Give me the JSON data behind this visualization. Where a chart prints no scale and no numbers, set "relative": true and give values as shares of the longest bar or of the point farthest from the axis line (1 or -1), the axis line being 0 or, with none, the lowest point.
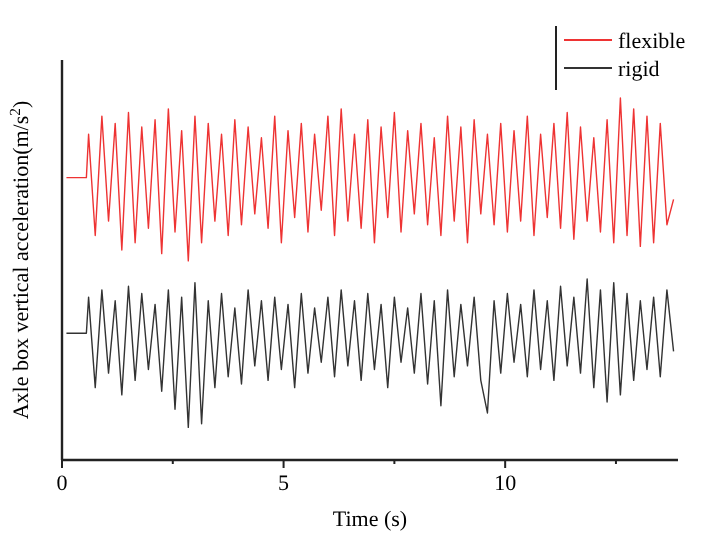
{
  "chart_data": {
    "type": "line",
    "relative": true,
    "xlabel": "Time (s)",
    "ylabel": "Axle box vertical acceleration(m/s$^{2}$)",
    "legend": "top right",
    "xlim": [
      0,
      13.9
    ],
    "xticks": [
      0,
      5,
      10,
      {
        "value": 2.5,
        "label": null
      },
      {
        "value": 7.5,
        "label": null
      },
      {
        "value": 12.5,
        "label": null
      }
    ],
    "x": [
      0.1,
      0.55,
      0.6,
      0.75,
      0.9,
      1.05,
      1.2,
      1.35,
      1.5,
      1.65,
      1.8,
      1.95,
      2.1,
      2.25,
      2.4,
      2.55,
      2.7,
      2.85,
      3.0,
      3.15,
      3.3,
      3.45,
      3.6,
      3.75,
      3.9,
      4.05,
      4.2,
      4.35,
      4.5,
      4.65,
      4.8,
      4.95,
      5.1,
      5.25,
      5.4,
      5.55,
      5.7,
      5.85,
      6.0,
      6.15,
      6.3,
      6.45,
      6.6,
      6.75,
      6.9,
      7.05,
      7.2,
      7.35,
      7.5,
      7.65,
      7.8,
      7.95,
      8.1,
      8.25,
      8.4,
      8.55,
      8.7,
      8.85,
      9.0,
      9.15,
      9.3,
      9.45,
      9.6,
      9.75,
      9.9,
      10.05,
      10.2,
      10.35,
      10.5,
      10.65,
      10.8,
      10.95,
      11.1,
      11.25,
      11.4,
      11.55,
      11.7,
      11.85,
      12.0,
      12.15,
      12.3,
      12.45,
      12.6,
      12.75,
      12.9,
      13.05,
      13.2,
      13.35,
      13.5,
      13.65,
      13.8
    ],
    "series": [
      {
        "name": "flexible",
        "color": "#ee3333",
        "values": [
          0.78,
          0.78,
          0.9,
          0.62,
          0.95,
          0.66,
          0.93,
          0.58,
          0.96,
          0.6,
          0.92,
          0.64,
          0.94,
          0.57,
          0.97,
          0.63,
          0.91,
          0.55,
          0.95,
          0.6,
          0.93,
          0.66,
          0.9,
          0.62,
          0.94,
          0.65,
          0.92,
          0.68,
          0.89,
          0.64,
          0.95,
          0.6,
          0.91,
          0.67,
          0.93,
          0.63,
          0.9,
          0.69,
          0.95,
          0.62,
          0.97,
          0.66,
          0.9,
          0.64,
          0.94,
          0.6,
          0.92,
          0.67,
          0.96,
          0.63,
          0.91,
          0.68,
          0.93,
          0.65,
          0.89,
          0.62,
          0.95,
          0.66,
          0.92,
          0.6,
          0.94,
          0.68,
          0.9,
          0.65,
          0.93,
          0.63,
          0.91,
          0.66,
          0.95,
          0.62,
          0.9,
          0.67,
          0.93,
          0.64,
          0.96,
          0.61,
          0.92,
          0.66,
          0.89,
          0.63,
          0.94,
          0.6,
          1.0,
          0.62,
          0.97,
          0.59,
          0.95,
          0.6,
          0.93,
          0.65,
          0.72
        ]
      },
      {
        "name": "rigid",
        "color": "#333333",
        "values": [
          0.35,
          0.35,
          0.45,
          0.2,
          0.47,
          0.24,
          0.44,
          0.18,
          0.48,
          0.22,
          0.46,
          0.25,
          0.43,
          0.19,
          0.47,
          0.14,
          0.45,
          0.09,
          0.49,
          0.1,
          0.44,
          0.2,
          0.46,
          0.23,
          0.42,
          0.21,
          0.47,
          0.26,
          0.44,
          0.22,
          0.45,
          0.25,
          0.43,
          0.2,
          0.46,
          0.24,
          0.42,
          0.27,
          0.45,
          0.23,
          0.47,
          0.26,
          0.44,
          0.22,
          0.46,
          0.25,
          0.43,
          0.2,
          0.45,
          0.27,
          0.42,
          0.24,
          0.46,
          0.21,
          0.44,
          0.15,
          0.47,
          0.23,
          0.43,
          0.26,
          0.45,
          0.22,
          0.13,
          0.44,
          0.24,
          0.46,
          0.27,
          0.43,
          0.23,
          0.47,
          0.25,
          0.44,
          0.22,
          0.48,
          0.26,
          0.45,
          0.24,
          0.5,
          0.2,
          0.47,
          0.16,
          0.49,
          0.18,
          0.46,
          0.22,
          0.44,
          0.25,
          0.45,
          0.23,
          0.47,
          0.3
        ]
      }
    ]
  }
}
